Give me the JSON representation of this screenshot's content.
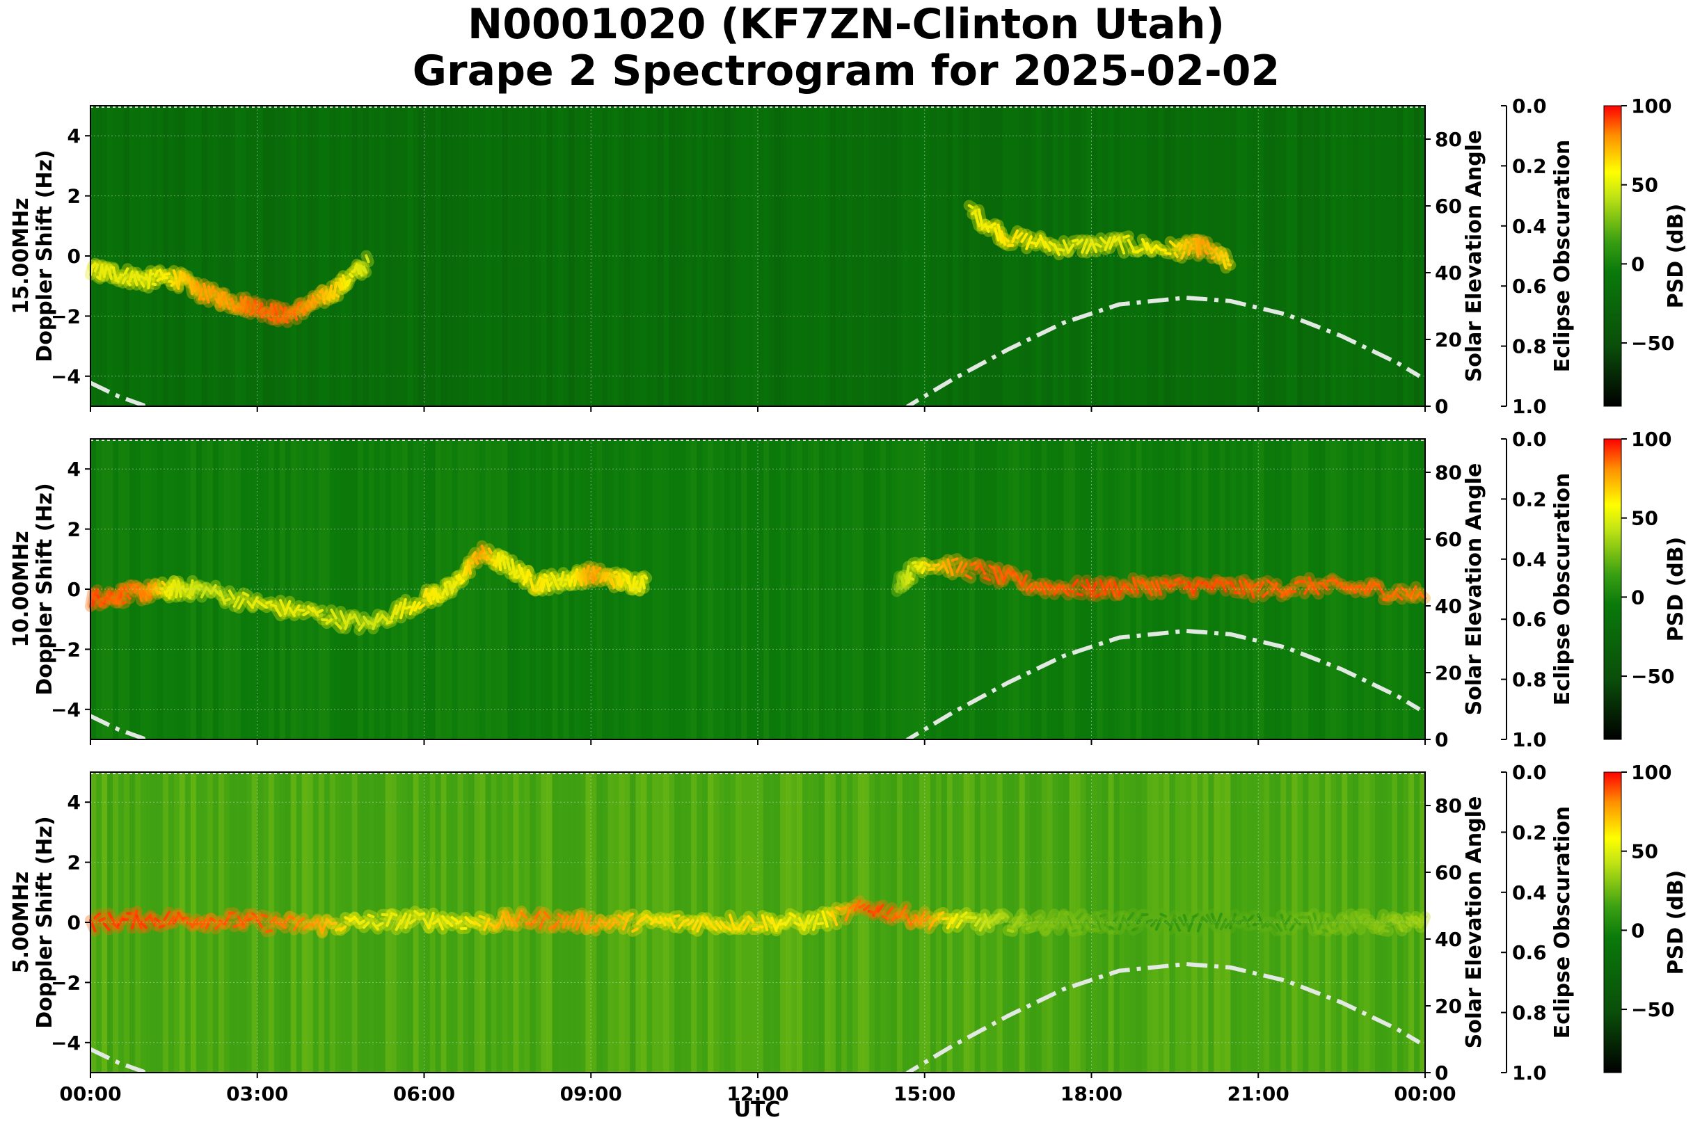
{
  "figure": {
    "title_line1": "N0001020 (KF7ZN-Clinton Utah)",
    "title_line2": "Grape 2 Spectrogram for 2025-02-02"
  },
  "x_axis": {
    "label": "UTC",
    "ticks": [
      "00:00",
      "03:00",
      "06:00",
      "09:00",
      "12:00",
      "15:00",
      "18:00",
      "21:00",
      "00:00"
    ],
    "range_hours": [
      0,
      24
    ]
  },
  "colors": {
    "background_green": "#0a7a0a",
    "mid_green": "#3fa612",
    "signal_yellow": "#e6ef18",
    "signal_orange": "#ff7a00",
    "signal_red": "#ff2000",
    "elevation_curve": "#e2e8e2",
    "colorbar": [
      "#000000",
      "#0a5a0a",
      "#0a7a0a",
      "#40a010",
      "#c8e614",
      "#ffff00",
      "#ff9000",
      "#ff0000"
    ]
  },
  "chart_data": [
    {
      "type": "heatmap",
      "panel": "15.00MHz",
      "ylabel_line1": "15.00MHz",
      "ylabel_line2": "Doppler Shift (Hz)",
      "ylim": [
        -5,
        5
      ],
      "yticks": [
        "4",
        "2",
        "0",
        "−2",
        "−4"
      ],
      "ytick_values": [
        4,
        2,
        0,
        -2,
        -4
      ],
      "right_label": "Solar Elevation Angle",
      "right_ticks": [
        "80",
        "60",
        "40",
        "20",
        "0"
      ],
      "right_tick_values": [
        80,
        60,
        40,
        20,
        0
      ],
      "right_ylim": [
        0,
        90
      ],
      "eclipse_label": "Eclipse Obscuration",
      "eclipse_ticks": [
        "0.0",
        "0.2",
        "0.4",
        "0.6",
        "0.8",
        "1.0"
      ],
      "colorbar_label": "PSD (dB)",
      "colorbar_ticks": [
        "100",
        "50",
        "0",
        "−50"
      ],
      "colorbar_tick_values": [
        100,
        50,
        0,
        -50
      ],
      "colorbar_range": [
        -90,
        100
      ],
      "doppler_trace": {
        "x_hours": [
          0,
          0.5,
          1,
          1.5,
          2,
          2.5,
          3,
          3.5,
          4,
          4.5,
          5,
          15.8,
          16.5,
          17.5,
          18.5,
          19.5,
          20,
          20.5
        ],
        "y_hz": [
          -0.5,
          -0.6,
          -0.8,
          -0.7,
          -1.2,
          -1.5,
          -1.7,
          -2.0,
          -1.6,
          -1.0,
          -0.2,
          1.5,
          0.6,
          0.3,
          0.4,
          0.2,
          0.3,
          -0.3
        ],
        "intensity": [
          0.6,
          0.6,
          0.6,
          0.7,
          0.8,
          0.8,
          0.9,
          0.9,
          0.8,
          0.7,
          0.5,
          0.6,
          0.7,
          0.6,
          0.6,
          0.7,
          0.8,
          0.7
        ]
      },
      "background_level": 0.1
    },
    {
      "type": "heatmap",
      "panel": "10.00MHz",
      "ylabel_line1": "10.00MHz",
      "ylabel_line2": "Doppler Shift (Hz)",
      "ylim": [
        -5,
        5
      ],
      "yticks": [
        "4",
        "2",
        "0",
        "−2",
        "−4"
      ],
      "ytick_values": [
        4,
        2,
        0,
        -2,
        -4
      ],
      "right_label": "Solar Elevation Angle",
      "right_ticks": [
        "80",
        "60",
        "40",
        "20",
        "0"
      ],
      "right_tick_values": [
        80,
        60,
        40,
        20,
        0
      ],
      "right_ylim": [
        0,
        90
      ],
      "eclipse_label": "Eclipse Obscuration",
      "eclipse_ticks": [
        "0.0",
        "0.2",
        "0.4",
        "0.6",
        "0.8",
        "1.0"
      ],
      "colorbar_label": "PSD (dB)",
      "colorbar_ticks": [
        "100",
        "50",
        "0",
        "−50"
      ],
      "colorbar_tick_values": [
        100,
        50,
        0,
        -50
      ],
      "colorbar_range": [
        -90,
        100
      ],
      "doppler_trace": {
        "x_hours": [
          0,
          0.5,
          1,
          1.5,
          2,
          3,
          4,
          5,
          6,
          6.5,
          7,
          7.5,
          8,
          8.5,
          9,
          9.5,
          10,
          14.5,
          15,
          16,
          17,
          18,
          19,
          20,
          21,
          22,
          23,
          24
        ],
        "y_hz": [
          -0.3,
          -0.2,
          -0.1,
          0,
          0,
          -0.5,
          -0.8,
          -1.2,
          -0.3,
          0,
          1.2,
          0.8,
          0.2,
          0.3,
          0.5,
          0.3,
          0.2,
          0.2,
          0.9,
          0.6,
          0.1,
          0.0,
          0.1,
          0.1,
          0.0,
          0.1,
          0.0,
          -0.2
        ],
        "intensity": [
          0.95,
          0.9,
          0.85,
          0.6,
          0.5,
          0.6,
          0.6,
          0.5,
          0.7,
          0.6,
          0.8,
          0.6,
          0.7,
          0.6,
          0.8,
          0.7,
          0.6,
          0.4,
          0.7,
          0.9,
          0.9,
          0.95,
          0.9,
          0.95,
          0.9,
          0.9,
          0.9,
          0.85
        ]
      },
      "background_level": 0.18
    },
    {
      "type": "heatmap",
      "panel": "5.00MHz",
      "ylabel_line1": "5.00MHz",
      "ylabel_line2": "Doppler Shift (Hz)",
      "ylim": [
        -5,
        5
      ],
      "yticks": [
        "4",
        "2",
        "0",
        "−2",
        "−4"
      ],
      "ytick_values": [
        4,
        2,
        0,
        -2,
        -4
      ],
      "right_label": "Solar Elevation Angle",
      "right_ticks": [
        "80",
        "60",
        "40",
        "20",
        "0"
      ],
      "right_tick_values": [
        80,
        60,
        40,
        20,
        0
      ],
      "right_ylim": [
        0,
        90
      ],
      "eclipse_label": "Eclipse Obscuration",
      "eclipse_ticks": [
        "0.0",
        "0.2",
        "0.4",
        "0.6",
        "0.8",
        "1.0"
      ],
      "colorbar_label": "PSD (dB)",
      "colorbar_ticks": [
        "100",
        "50",
        "0",
        "−50"
      ],
      "colorbar_tick_values": [
        100,
        50,
        0,
        -50
      ],
      "colorbar_range": [
        -90,
        100
      ],
      "doppler_trace": {
        "x_hours": [
          0,
          1,
          2,
          3,
          4,
          5,
          6,
          7,
          8,
          9,
          10,
          11,
          12,
          13,
          14,
          15,
          16,
          17,
          18,
          19,
          20,
          21,
          22,
          23,
          24
        ],
        "y_hz": [
          0,
          0.1,
          0.1,
          0.0,
          -0.1,
          0,
          0.1,
          0,
          0.1,
          0,
          0,
          0,
          0,
          0,
          0.5,
          0.1,
          0,
          0,
          0,
          0,
          0,
          0,
          0,
          0,
          -0.1
        ],
        "intensity": [
          0.95,
          0.95,
          0.9,
          0.9,
          0.8,
          0.6,
          0.6,
          0.7,
          0.85,
          0.8,
          0.7,
          0.7,
          0.7,
          0.6,
          0.95,
          0.8,
          0.5,
          0.4,
          0.35,
          0.3,
          0.3,
          0.3,
          0.35,
          0.4,
          0.45
        ]
      },
      "background_level": 0.35
    }
  ],
  "solar_elevation": {
    "x_hours": [
      0,
      0.5,
      1,
      14.7,
      15.5,
      16.5,
      17.5,
      18.5,
      19.7,
      20.5,
      21.5,
      22.5,
      23.5,
      24
    ],
    "y_deg": [
      7,
      3,
      0,
      0,
      8,
      17,
      25,
      30.5,
      32.5,
      31.5,
      27.5,
      21,
      13,
      8
    ]
  }
}
